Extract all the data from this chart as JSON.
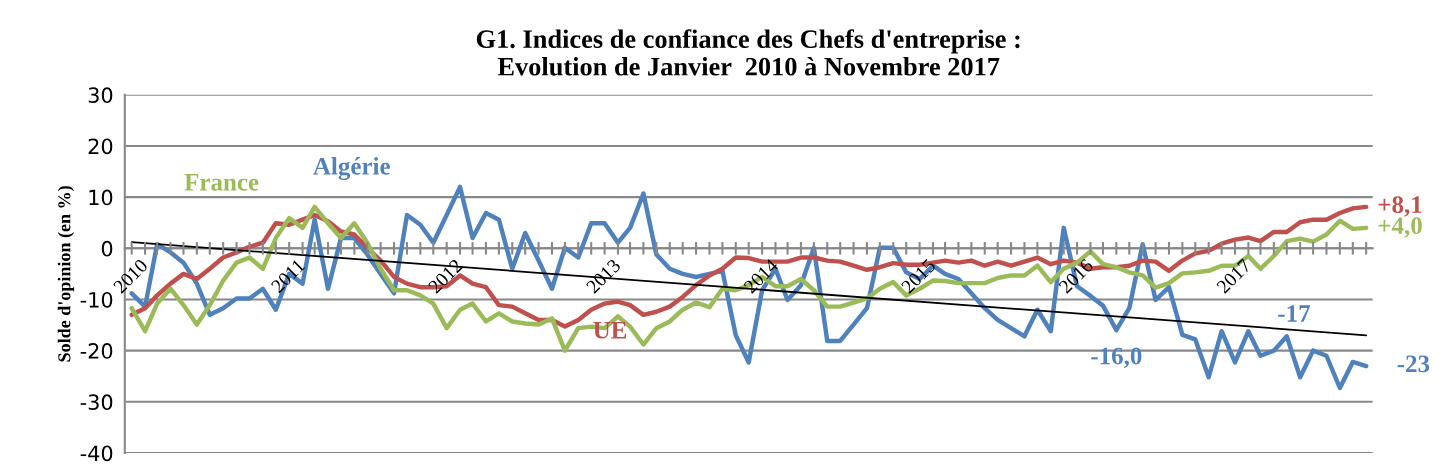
{
  "chart_data": {
    "type": "line",
    "title": "G1. Indices de confiance des Chefs d'entreprise :\nEvolution de Janvier  2010 à Novembre 2017",
    "ylabel": "Solde d'opinion (en %)",
    "x": [
      "2010-01",
      "2010-02",
      "2010-03",
      "2010-04",
      "2010-05",
      "2010-06",
      "2010-07",
      "2010-08",
      "2010-09",
      "2010-10",
      "2010-11",
      "2010-12",
      "2011-01",
      "2011-02",
      "2011-03",
      "2011-04",
      "2011-05",
      "2011-06",
      "2011-07",
      "2011-08",
      "2011-09",
      "2011-10",
      "2011-11",
      "2011-12",
      "2012-01",
      "2012-02",
      "2012-03",
      "2012-04",
      "2012-05",
      "2012-06",
      "2012-07",
      "2012-08",
      "2012-09",
      "2012-10",
      "2012-11",
      "2012-12",
      "2013-01",
      "2013-02",
      "2013-03",
      "2013-04",
      "2013-05",
      "2013-06",
      "2013-07",
      "2013-08",
      "2013-09",
      "2013-10",
      "2013-11",
      "2013-12",
      "2014-01",
      "2014-02",
      "2014-03",
      "2014-04",
      "2014-05",
      "2014-06",
      "2014-07",
      "2014-08",
      "2014-09",
      "2014-10",
      "2014-11",
      "2014-12",
      "2015-01",
      "2015-02",
      "2015-03",
      "2015-04",
      "2015-05",
      "2015-06",
      "2015-07",
      "2015-08",
      "2015-09",
      "2015-10",
      "2015-11",
      "2015-12",
      "2016-01",
      "2016-02",
      "2016-03",
      "2016-04",
      "2016-05",
      "2016-06",
      "2016-07",
      "2016-08",
      "2016-09",
      "2016-10",
      "2016-11",
      "2016-12",
      "2017-01",
      "2017-02",
      "2017-03",
      "2017-04",
      "2017-05",
      "2017-06",
      "2017-07",
      "2017-08",
      "2017-09",
      "2017-10",
      "2017-11"
    ],
    "series": [
      {
        "name": "Algérie",
        "color": "#4f81bd",
        "values": [
          -8.8,
          -11.4,
          0.8,
          -0.8,
          -2.8,
          -6.9,
          -13,
          -11.7,
          -9.8,
          -9.8,
          -7.9,
          -12,
          -5,
          -6.9,
          5.6,
          -7.9,
          2,
          2,
          -1.2,
          -5,
          -8.8,
          6.5,
          4.6,
          1.1,
          6.5,
          12,
          2,
          6.9,
          5.6,
          -4,
          3,
          -2.4,
          -7.9,
          0.1,
          -1.8,
          4.9,
          4.9,
          1.1,
          4,
          10.7,
          -1.2,
          -4,
          -5,
          -5.6,
          -5,
          -4.4,
          -17,
          -22.3,
          -8.2,
          -4,
          -10.1,
          -7.2,
          0.1,
          -18.1,
          -18.1,
          -14.9,
          -11.7,
          0.1,
          0.1,
          -4.7,
          -6,
          -3.4,
          -5,
          -6,
          -8.8,
          -11.7,
          -14,
          -15.6,
          -17.2,
          -12,
          -16.2,
          4,
          -7.4,
          -9.3,
          -11.2,
          -16.0,
          -11.7,
          0.8,
          -10.1,
          -7.6,
          -16.9,
          -17.8,
          -25.2,
          -16.2,
          -22.3,
          -16.2,
          -21,
          -20,
          -17.2,
          -25.2,
          -20,
          -21,
          -27.3,
          -22.2,
          -23
        ]
      },
      {
        "name": "UE",
        "color": "#c0504d",
        "values": [
          -13,
          -11.7,
          -9.2,
          -6.9,
          -5,
          -6,
          -4,
          -1.8,
          -0.8,
          0.3,
          1.1,
          4.9,
          4.6,
          5.6,
          6.5,
          5.3,
          3.3,
          2.7,
          0.1,
          -2.4,
          -5.6,
          -6.9,
          -7.6,
          -7.6,
          -7.4,
          -5.3,
          -6.9,
          -7.6,
          -11.1,
          -11.4,
          -12.7,
          -14,
          -14,
          -15.3,
          -14,
          -12,
          -10.8,
          -10.4,
          -11.1,
          -13,
          -12.4,
          -11.4,
          -9.5,
          -7.2,
          -5.3,
          -4,
          -1.8,
          -1.9,
          -2.6,
          -2.6,
          -2.6,
          -1.8,
          -1.8,
          -2.4,
          -2.6,
          -3.4,
          -4.2,
          -3.7,
          -2.9,
          -3.2,
          -3.2,
          -2.8,
          -2.4,
          -2.8,
          -2.4,
          -3.4,
          -2.6,
          -3.4,
          -2.6,
          -1.8,
          -3.1,
          -2.4,
          -2.8,
          -4,
          -3.7,
          -3.7,
          -3.4,
          -2.4,
          -2.6,
          -4.4,
          -2.4,
          -1,
          -0.5,
          0.9,
          1.7,
          2.1,
          1.4,
          3.2,
          3.2,
          5.1,
          5.6,
          5.6,
          6.9,
          7.8,
          8.1
        ]
      },
      {
        "name": "France",
        "color": "#9bbb59",
        "values": [
          -11.7,
          -16.2,
          -10.8,
          -7.9,
          -11.1,
          -14.9,
          -11.1,
          -6.3,
          -2.8,
          -1.8,
          -4,
          2,
          5.9,
          4,
          8.1,
          4.9,
          2,
          4.9,
          1.1,
          -4,
          -8.2,
          -8.2,
          -9.2,
          -10.8,
          -15.6,
          -12,
          -10.8,
          -14.3,
          -12.7,
          -14.3,
          -14.7,
          -14.9,
          -13.7,
          -20,
          -15.6,
          -15.3,
          -15.6,
          -13.3,
          -15.3,
          -18.8,
          -15.6,
          -14.3,
          -12,
          -10.6,
          -11.5,
          -7.9,
          -8.2,
          -7.2,
          -5.6,
          -7.4,
          -7.4,
          -6,
          -8.2,
          -11.4,
          -11.4,
          -10.6,
          -9.8,
          -7.9,
          -6.6,
          -9.2,
          -7.9,
          -6.3,
          -6.4,
          -6.8,
          -6.8,
          -6.8,
          -5.8,
          -5.3,
          -5.3,
          -3.4,
          -6.6,
          -4,
          -2.8,
          -0.6,
          -3.1,
          -3.7,
          -4.7,
          -5.3,
          -7.7,
          -6.8,
          -4.9,
          -4.7,
          -4.4,
          -3.4,
          -3.4,
          -1.5,
          -4,
          -1.5,
          1.4,
          1.9,
          1.3,
          2.7,
          5.4,
          3.8,
          4.0
        ]
      },
      {
        "color": "#000000",
        "x": [
          "2010-01",
          "2017-11"
        ],
        "values": [
          1.2,
          -17
        ]
      }
    ],
    "annotations": [
      {
        "text": "+8,1",
        "x": "2017-11",
        "y": 8.1
      },
      {
        "text": "+4,0",
        "x": "2017-11",
        "y": 4.0
      },
      {
        "text": "-23",
        "x": "2017-11",
        "y": -23
      },
      {
        "text": "-16,0",
        "x": "2016-04",
        "y": -16.0
      },
      {
        "text": "-17",
        "x": "2017-11",
        "y": -17
      }
    ],
    "ylim": [
      -40,
      30
    ],
    "yticks": [
      -40,
      -30,
      -20,
      -10,
      0,
      10,
      20,
      30
    ],
    "xlim": [
      "2009-12-16",
      "2017-11-16"
    ],
    "xticks": [
      {
        "value": "2010-01",
        "label": "2010"
      },
      {
        "value": "2010-02",
        "label": null
      },
      {
        "value": "2010-03",
        "label": null
      },
      {
        "value": "2010-04",
        "label": null
      },
      {
        "value": "2010-05",
        "label": null
      },
      {
        "value": "2010-06",
        "label": null
      },
      {
        "value": "2010-07",
        "label": null
      },
      {
        "value": "2010-08",
        "label": null
      },
      {
        "value": "2010-09",
        "label": null
      },
      {
        "value": "2010-10",
        "label": null
      },
      {
        "value": "2010-11",
        "label": null
      },
      {
        "value": "2010-12",
        "label": null
      },
      {
        "value": "2011-01",
        "label": "2011"
      },
      {
        "value": "2011-02",
        "label": null
      },
      {
        "value": "2011-03",
        "label": null
      },
      {
        "value": "2011-04",
        "label": null
      },
      {
        "value": "2011-05",
        "label": null
      },
      {
        "value": "2011-06",
        "label": null
      },
      {
        "value": "2011-07",
        "label": null
      },
      {
        "value": "2011-08",
        "label": null
      },
      {
        "value": "2011-09",
        "label": null
      },
      {
        "value": "2011-10",
        "label": null
      },
      {
        "value": "2011-11",
        "label": null
      },
      {
        "value": "2011-12",
        "label": null
      },
      {
        "value": "2012-01",
        "label": "2012"
      },
      {
        "value": "2012-02",
        "label": null
      },
      {
        "value": "2012-03",
        "label": null
      },
      {
        "value": "2012-04",
        "label": null
      },
      {
        "value": "2012-05",
        "label": null
      },
      {
        "value": "2012-06",
        "label": null
      },
      {
        "value": "2012-07",
        "label": null
      },
      {
        "value": "2012-08",
        "label": null
      },
      {
        "value": "2012-09",
        "label": null
      },
      {
        "value": "2012-10",
        "label": null
      },
      {
        "value": "2012-11",
        "label": null
      },
      {
        "value": "2012-12",
        "label": null
      },
      {
        "value": "2013-01",
        "label": "2013"
      },
      {
        "value": "2013-02",
        "label": null
      },
      {
        "value": "2013-03",
        "label": null
      },
      {
        "value": "2013-04",
        "label": null
      },
      {
        "value": "2013-05",
        "label": null
      },
      {
        "value": "2013-06",
        "label": null
      },
      {
        "value": "2013-07",
        "label": null
      },
      {
        "value": "2013-08",
        "label": null
      },
      {
        "value": "2013-09",
        "label": null
      },
      {
        "value": "2013-10",
        "label": null
      },
      {
        "value": "2013-11",
        "label": null
      },
      {
        "value": "2013-12",
        "label": null
      },
      {
        "value": "2014-01",
        "label": "2014"
      },
      {
        "value": "2014-02",
        "label": null
      },
      {
        "value": "2014-03",
        "label": null
      },
      {
        "value": "2014-04",
        "label": null
      },
      {
        "value": "2014-05",
        "label": null
      },
      {
        "value": "2014-06",
        "label": null
      },
      {
        "value": "2014-07",
        "label": null
      },
      {
        "value": "2014-08",
        "label": null
      },
      {
        "value": "2014-09",
        "label": null
      },
      {
        "value": "2014-10",
        "label": null
      },
      {
        "value": "2014-11",
        "label": null
      },
      {
        "value": "2014-12",
        "label": null
      },
      {
        "value": "2015-01",
        "label": "2015"
      },
      {
        "value": "2015-02",
        "label": null
      },
      {
        "value": "2015-03",
        "label": null
      },
      {
        "value": "2015-04",
        "label": null
      },
      {
        "value": "2015-05",
        "label": null
      },
      {
        "value": "2015-06",
        "label": null
      },
      {
        "value": "2015-07",
        "label": null
      },
      {
        "value": "2015-08",
        "label": null
      },
      {
        "value": "2015-09",
        "label": null
      },
      {
        "value": "2015-10",
        "label": null
      },
      {
        "value": "2015-11",
        "label": null
      },
      {
        "value": "2015-12",
        "label": null
      },
      {
        "value": "2016-01",
        "label": "2016"
      },
      {
        "value": "2016-02",
        "label": null
      },
      {
        "value": "2016-03",
        "label": null
      },
      {
        "value": "2016-04",
        "label": null
      },
      {
        "value": "2016-05",
        "label": null
      },
      {
        "value": "2016-06",
        "label": null
      },
      {
        "value": "2016-07",
        "label": null
      },
      {
        "value": "2016-08",
        "label": null
      },
      {
        "value": "2016-09",
        "label": null
      },
      {
        "value": "2016-10",
        "label": null
      },
      {
        "value": "2016-11",
        "label": null
      },
      {
        "value": "2016-12",
        "label": null
      },
      {
        "value": "2017-01",
        "label": "2017"
      },
      {
        "value": "2017-02",
        "label": null
      },
      {
        "value": "2017-03",
        "label": null
      },
      {
        "value": "2017-04",
        "label": null
      },
      {
        "value": "2017-05",
        "label": null
      },
      {
        "value": "2017-06",
        "label": null
      },
      {
        "value": "2017-07",
        "label": null
      },
      {
        "value": "2017-08",
        "label": null
      },
      {
        "value": "2017-09",
        "label": null
      },
      {
        "value": "2017-10",
        "label": null
      },
      {
        "value": "2017-11",
        "label": null
      }
    ],
    "grid": "y",
    "legend": false,
    "marker": "none",
    "line_style": "solid"
  }
}
